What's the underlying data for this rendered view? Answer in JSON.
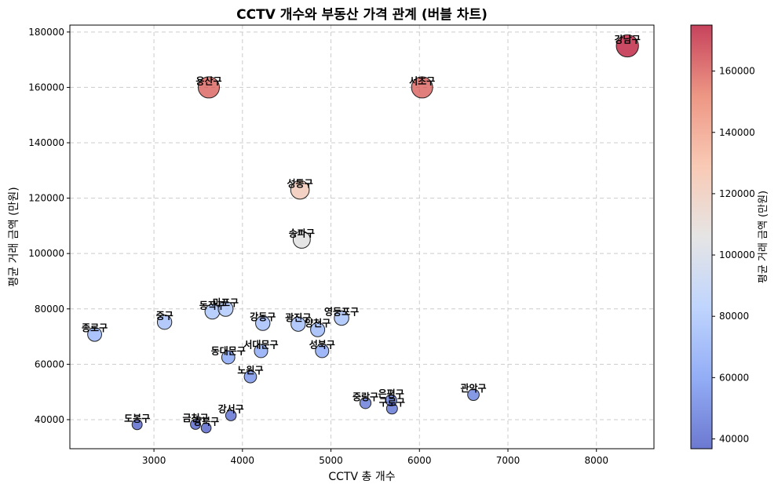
{
  "chart_data": {
    "type": "scatter",
    "variant": "bubble",
    "title": "CCTV 개수와 부동산 가격 관계 (버블 차트)",
    "xlabel": "CCTV 총 개수",
    "ylabel": "평균 거래 금액 (만원)",
    "xlim": [
      2050,
      8650
    ],
    "ylim": [
      29500,
      182500
    ],
    "xticks": [
      "3000",
      "4000",
      "5000",
      "6000",
      "7000",
      "8000"
    ],
    "yticks": [
      "40000",
      "60000",
      "80000",
      "100000",
      "120000",
      "140000",
      "160000",
      "180000"
    ],
    "grid": true,
    "colorbar": {
      "label": "평균 거래 금액 (만원)",
      "range": [
        36800,
        175000
      ],
      "ticks": [
        "40000",
        "60000",
        "80000",
        "100000",
        "120000",
        "140000",
        "160000"
      ],
      "colormap": "coolwarm",
      "stops": [
        "#3b4cc0",
        "#6f92f3",
        "#aac7fd",
        "#dddcdc",
        "#f7b89c",
        "#e7745b",
        "#b40426"
      ]
    },
    "points": [
      {
        "label": "강남구",
        "x": 8350,
        "y": 175000
      },
      {
        "label": "용산구",
        "x": 3620,
        "y": 160000
      },
      {
        "label": "서초구",
        "x": 6030,
        "y": 160000
      },
      {
        "label": "성동구",
        "x": 4650,
        "y": 123000
      },
      {
        "label": "송파구",
        "x": 4670,
        "y": 105000
      },
      {
        "label": "종로구",
        "x": 2330,
        "y": 70800
      },
      {
        "label": "중구",
        "x": 3120,
        "y": 75200
      },
      {
        "label": "동작구",
        "x": 3660,
        "y": 79000
      },
      {
        "label": "마포구",
        "x": 3810,
        "y": 80000
      },
      {
        "label": "강동구",
        "x": 4230,
        "y": 74800
      },
      {
        "label": "광진구",
        "x": 4630,
        "y": 74500
      },
      {
        "label": "양천구",
        "x": 4850,
        "y": 72500
      },
      {
        "label": "영등포구",
        "x": 5120,
        "y": 76700
      },
      {
        "label": "동대문구",
        "x": 3840,
        "y": 62500
      },
      {
        "label": "서대문구",
        "x": 4210,
        "y": 64800
      },
      {
        "label": "성북구",
        "x": 4900,
        "y": 64800
      },
      {
        "label": "노원구",
        "x": 4090,
        "y": 55500
      },
      {
        "label": "중랑구",
        "x": 5390,
        "y": 46000
      },
      {
        "label": "은평구",
        "x": 5680,
        "y": 47000
      },
      {
        "label": "구로구",
        "x": 5690,
        "y": 44000
      },
      {
        "label": "관악구",
        "x": 6610,
        "y": 49000
      },
      {
        "label": "도봉구",
        "x": 2810,
        "y": 38200
      },
      {
        "label": "금천구",
        "x": 3470,
        "y": 38300
      },
      {
        "label": "강북구",
        "x": 3590,
        "y": 37000
      },
      {
        "label": "강서구",
        "x": 3870,
        "y": 41500
      }
    ]
  }
}
